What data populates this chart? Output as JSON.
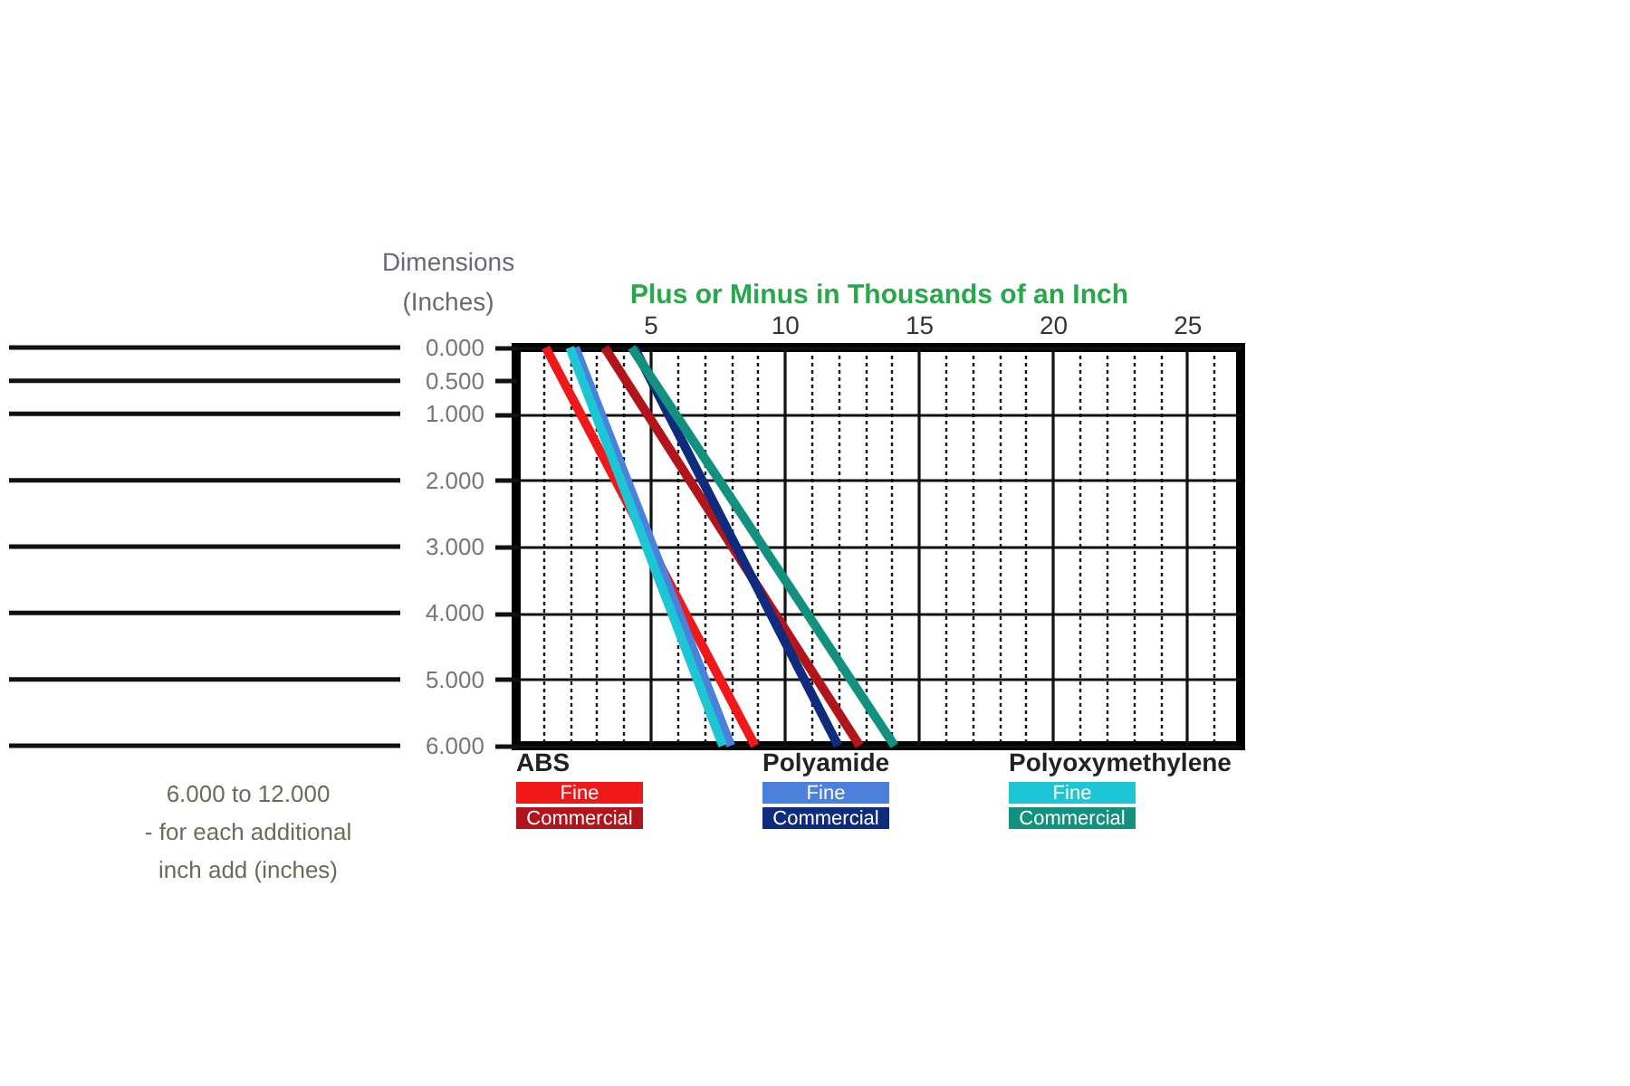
{
  "chart_data": {
    "type": "line",
    "xlabel": "Plus or Minus in Thousands of an Inch",
    "ylabel": "Dimensions\n(Inches)",
    "xlim": [
      0,
      27
    ],
    "xticks": [
      {
        "value": 1,
        "label": null
      },
      {
        "value": 2,
        "label": null
      },
      {
        "value": 3,
        "label": null
      },
      {
        "value": 4,
        "label": null
      },
      5,
      {
        "value": 6,
        "label": null
      },
      {
        "value": 7,
        "label": null
      },
      {
        "value": 8,
        "label": null
      },
      {
        "value": 9,
        "label": null
      },
      10,
      {
        "value": 11,
        "label": null
      },
      {
        "value": 12,
        "label": null
      },
      {
        "value": 13,
        "label": null
      },
      {
        "value": 14,
        "label": null
      },
      15,
      {
        "value": 16,
        "label": null
      },
      {
        "value": 17,
        "label": null
      },
      {
        "value": 18,
        "label": null
      },
      {
        "value": 19,
        "label": null
      },
      20,
      {
        "value": 21,
        "label": null
      },
      {
        "value": 22,
        "label": null
      },
      {
        "value": 23,
        "label": null
      },
      {
        "value": 24,
        "label": null
      },
      25,
      {
        "value": 26,
        "label": null
      }
    ],
    "ylim": [
      6,
      0
    ],
    "yticks": [
      {
        "value": 0,
        "label": "0.000"
      },
      {
        "value": 0.5,
        "label": "0.500"
      },
      {
        "value": 1,
        "label": "1.000"
      },
      {
        "value": 2,
        "label": "2.000"
      },
      {
        "value": 3,
        "label": "3.000"
      },
      {
        "value": 4,
        "label": "4.000"
      },
      {
        "value": 5,
        "label": "5.000"
      },
      {
        "value": 6,
        "label": "6.000"
      }
    ],
    "grid": true,
    "legend": "bottom",
    "series": [
      {
        "name": "Fine",
        "color": "#f01818",
        "x": [
          1.1,
          8.9
        ],
        "values": [
          0,
          6
        ]
      },
      {
        "name": "Commercial",
        "color": "#b2141c",
        "x": [
          3.3,
          12.8
        ],
        "values": [
          0,
          6
        ]
      },
      {
        "name": "Fine",
        "color": "#4b80dc",
        "x": [
          2.2,
          8.0
        ],
        "values": [
          0,
          6
        ]
      },
      {
        "name": "Commercial",
        "color": "#0f2b7d",
        "x": [
          4.4,
          12.0
        ],
        "values": [
          0,
          6
        ]
      },
      {
        "name": "Fine",
        "color": "#1cc6d4",
        "x": [
          2.0,
          7.7
        ],
        "values": [
          0,
          6
        ]
      },
      {
        "name": "Commercial",
        "color": "#12917f",
        "x": [
          4.3,
          14.1
        ],
        "values": [
          0,
          6
        ]
      }
    ],
    "annotations": [
      "ABS",
      "Polyamide",
      "Polyoxymethylene",
      "6.000 to 12.000\n- for each additional\ninch add (inches)"
    ]
  }
}
